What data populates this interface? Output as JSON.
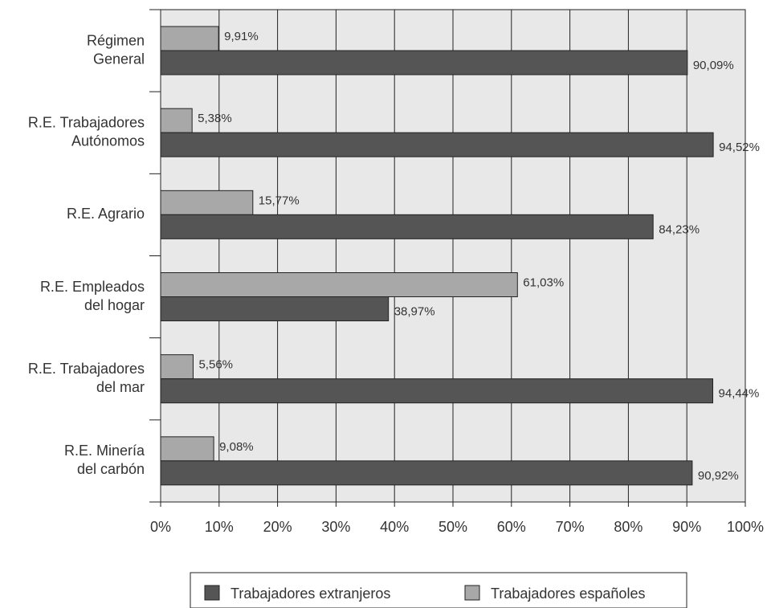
{
  "chart_data": {
    "type": "bar",
    "orientation": "horizontal",
    "categories": [
      [
        "Régimen",
        "General"
      ],
      [
        "R.E. Trabajadores",
        "Autónomos"
      ],
      [
        "R.E. Agrario"
      ],
      [
        "R.E. Empleados",
        "del hogar"
      ],
      [
        "R.E. Trabajadores",
        "del mar"
      ],
      [
        "R.E. Minería",
        "del carbón"
      ]
    ],
    "series": [
      {
        "name": "Trabajadores españoles",
        "color": "#a8a8a8",
        "values": [
          9.91,
          5.38,
          15.77,
          61.03,
          5.56,
          9.08
        ],
        "labels": [
          "9,91%",
          "5,38%",
          "15,77%",
          "61,03%",
          "5,56%",
          "9,08%"
        ]
      },
      {
        "name": "Trabajadores extranjeros",
        "color": "#555555",
        "values": [
          90.09,
          94.52,
          84.23,
          38.97,
          94.44,
          90.92
        ],
        "labels": [
          "90,09%",
          "94,52%",
          "84,23%",
          "38,97%",
          "94,44%",
          "90,92%"
        ]
      }
    ],
    "xlim": [
      0,
      100
    ],
    "x_ticks": [
      "0%",
      "10%",
      "20%",
      "30%",
      "40%",
      "50%",
      "60%",
      "70%",
      "80%",
      "90%",
      "100%"
    ],
    "grid": true,
    "legend": {
      "position": "bottom",
      "entries": [
        {
          "label": "Trabajadores extranjeros",
          "color": "#555555"
        },
        {
          "label": "Trabajadores españoles",
          "color": "#a8a8a8"
        }
      ]
    }
  }
}
